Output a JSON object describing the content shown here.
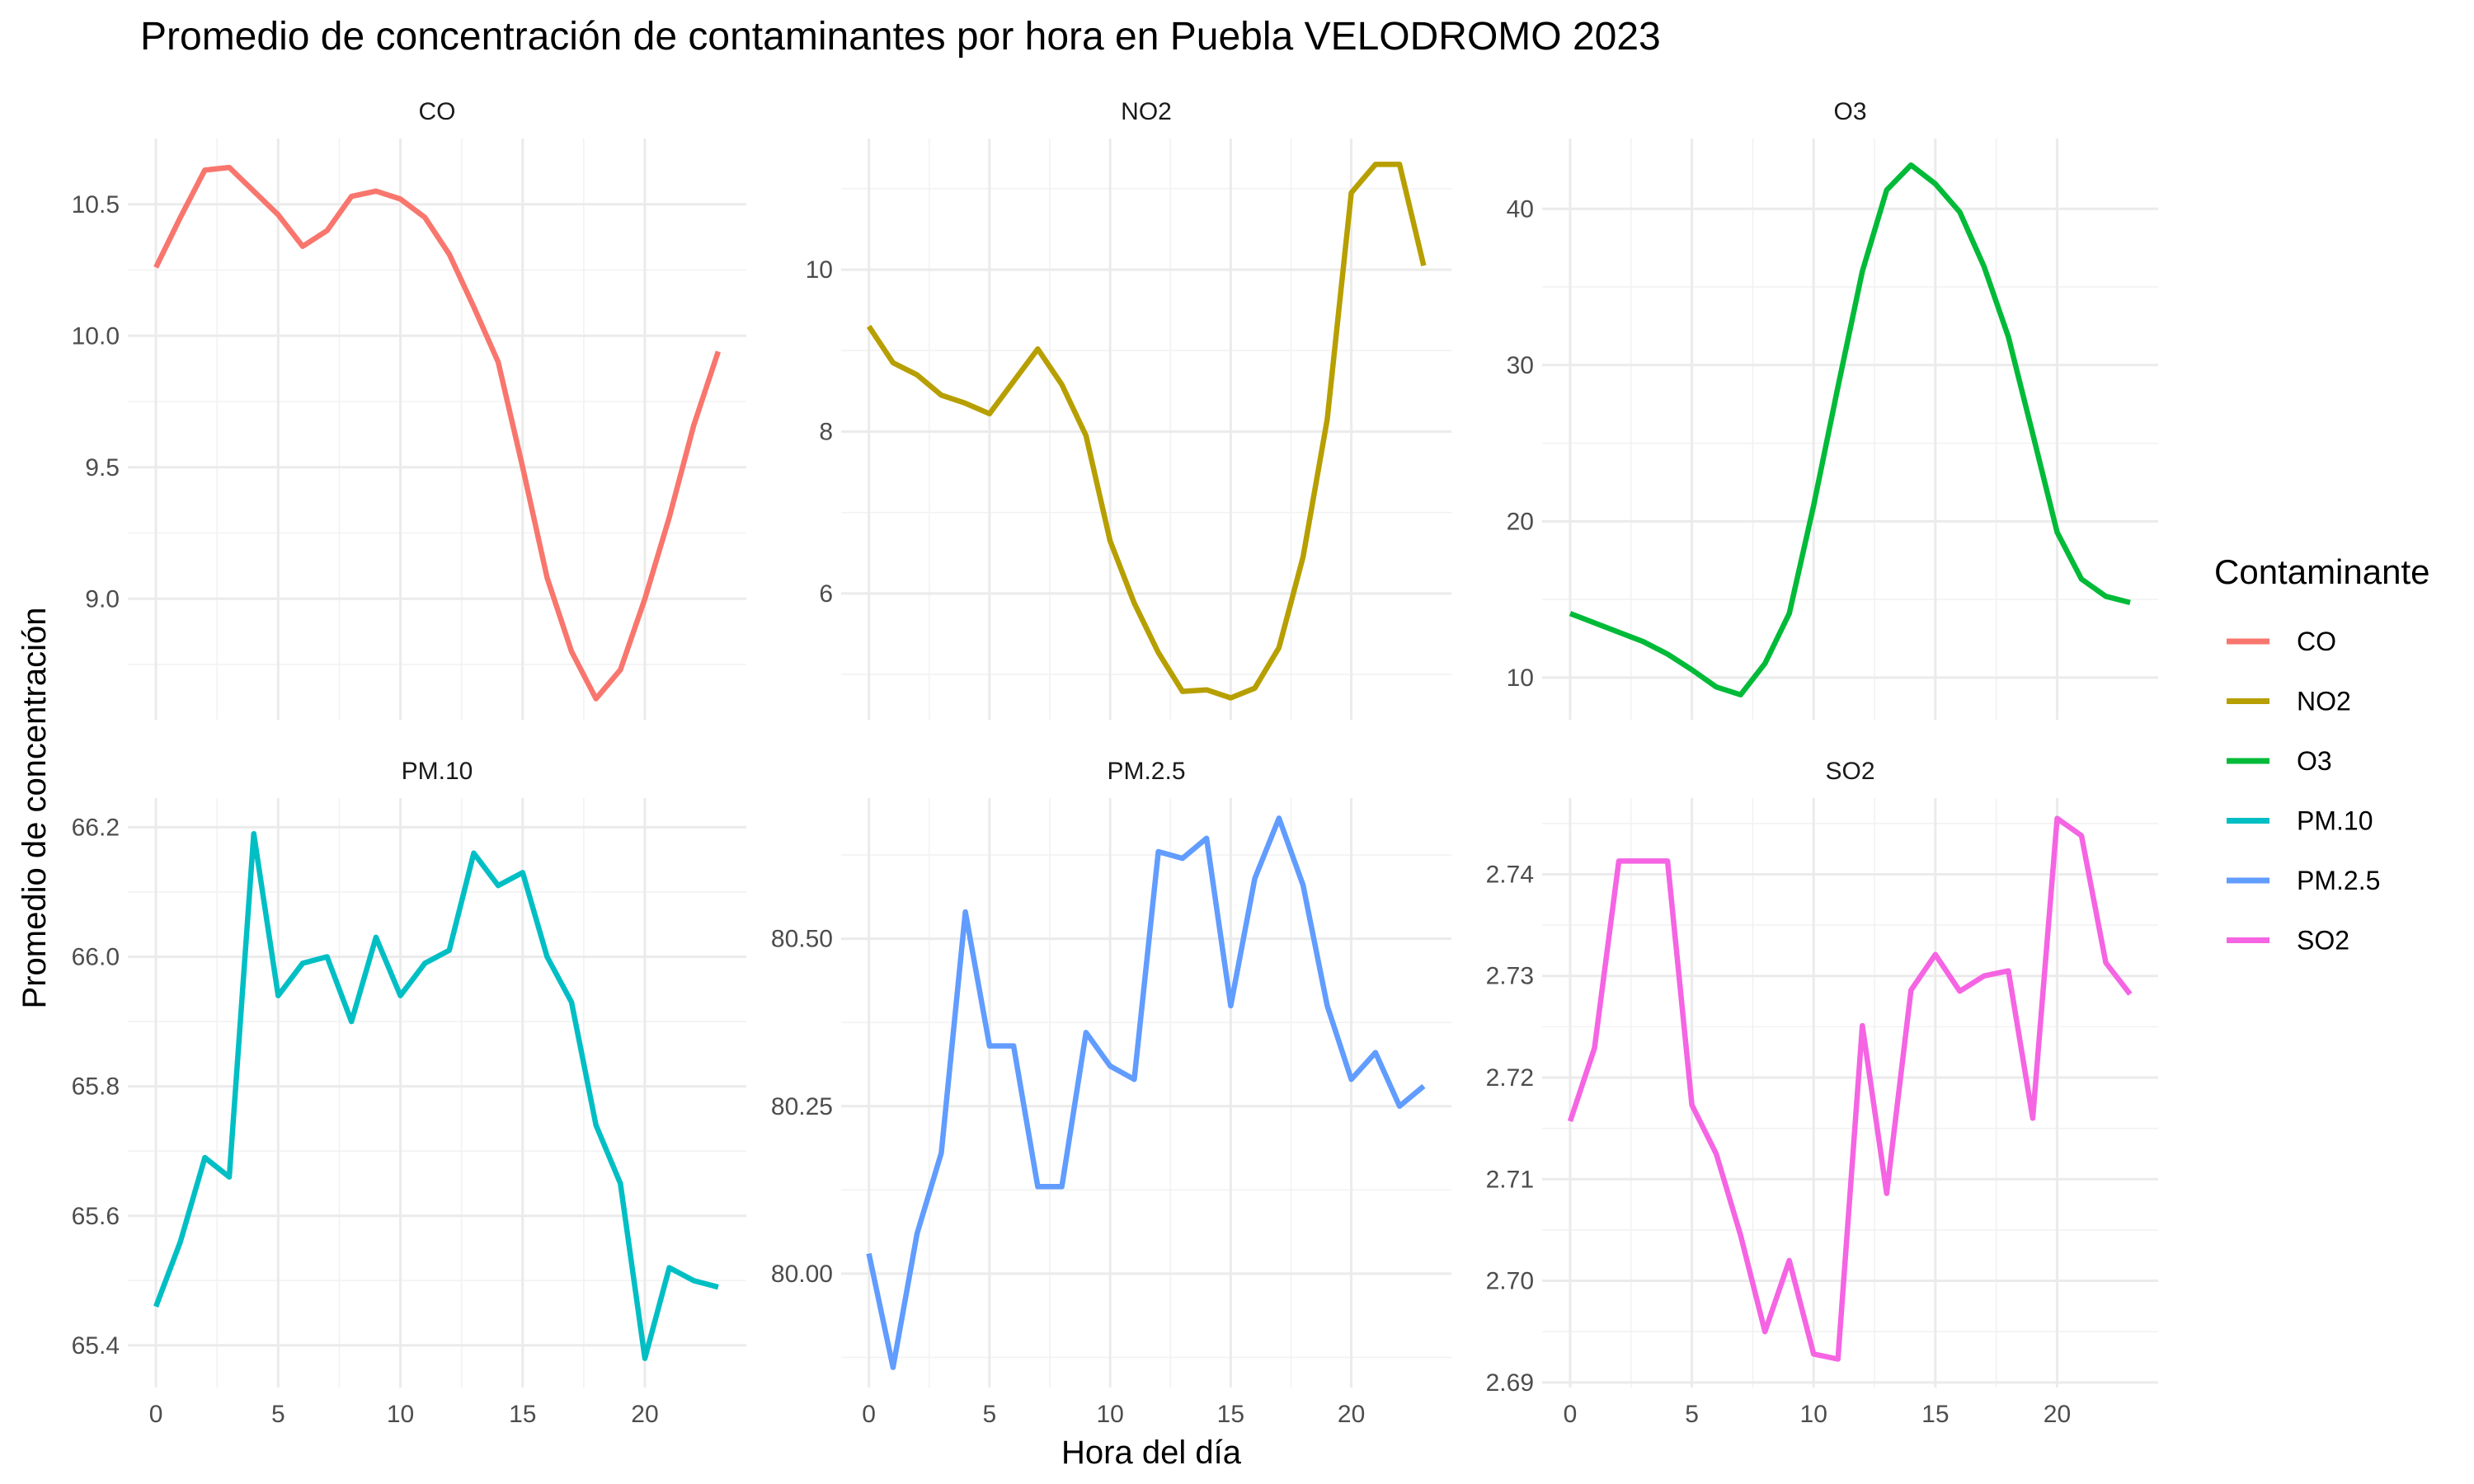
{
  "chart_data": {
    "type": "line",
    "title": "Promedio de concentración de contaminantes por hora en Puebla VELODROMO 2023",
    "xlabel": "Hora del día",
    "ylabel": "Promedio de concentración",
    "legend": {
      "title": "Contaminante",
      "placement": "right"
    },
    "x": [
      0,
      1,
      2,
      3,
      4,
      5,
      6,
      7,
      8,
      9,
      10,
      11,
      12,
      13,
      14,
      15,
      16,
      17,
      18,
      19,
      20,
      21,
      22,
      23
    ],
    "x_ticks": [
      "0",
      "5",
      "10",
      "15",
      "20"
    ],
    "xlim": [
      -1.15,
      24.15
    ],
    "grid": true,
    "panels": [
      {
        "name": "CO",
        "color": "#F8766D",
        "ylim": [
          8.54,
          10.75
        ],
        "y_ticks": [
          9.0,
          9.5,
          10.0,
          10.5
        ],
        "y_tick_labels": [
          "9.0",
          "9.5",
          "10.0",
          "10.5"
        ],
        "values": [
          10.26,
          10.45,
          10.63,
          10.64,
          10.55,
          10.46,
          10.34,
          10.4,
          10.53,
          10.55,
          10.52,
          10.45,
          10.31,
          10.11,
          9.9,
          9.5,
          9.08,
          8.8,
          8.62,
          8.73,
          9.0,
          9.31,
          9.66,
          9.94
        ]
      },
      {
        "name": "NO2",
        "color": "#B79F00",
        "ylim": [
          4.44,
          11.62
        ],
        "y_ticks": [
          6,
          8,
          10
        ],
        "y_tick_labels": [
          "6",
          "8",
          "10"
        ],
        "values": [
          9.3,
          8.85,
          8.7,
          8.45,
          8.35,
          8.22,
          8.62,
          9.02,
          8.58,
          7.95,
          6.65,
          5.88,
          5.27,
          4.79,
          4.81,
          4.71,
          4.83,
          5.33,
          6.45,
          8.15,
          10.95,
          11.3,
          11.3,
          10.05
        ]
      },
      {
        "name": "O3",
        "color": "#00BA38",
        "ylim": [
          7.3,
          44.5
        ],
        "y_ticks": [
          10,
          20,
          30,
          40
        ],
        "y_tick_labels": [
          "10",
          "20",
          "30",
          "40"
        ],
        "values": [
          14.1,
          13.5,
          12.9,
          12.3,
          11.5,
          10.5,
          9.4,
          8.9,
          10.9,
          14.1,
          21.0,
          28.6,
          36.0,
          41.2,
          42.8,
          41.6,
          39.8,
          36.3,
          31.8,
          25.6,
          19.3,
          16.3,
          15.2,
          14.8
        ]
      },
      {
        "name": "PM.10",
        "color": "#00BFC4",
        "ylim": [
          65.335,
          66.245
        ],
        "y_ticks": [
          65.4,
          65.6,
          65.8,
          66.0,
          66.2
        ],
        "y_tick_labels": [
          "65.4",
          "65.6",
          "65.8",
          "66.0",
          "66.2"
        ],
        "values": [
          65.46,
          65.56,
          65.69,
          65.66,
          66.19,
          65.94,
          65.99,
          66.0,
          65.9,
          66.03,
          65.94,
          65.99,
          66.01,
          66.16,
          66.11,
          66.13,
          66.0,
          65.93,
          65.74,
          65.65,
          65.38,
          65.52,
          65.5,
          65.49
        ]
      },
      {
        "name": "PM.2.5",
        "color": "#619CFF",
        "ylim": [
          79.83,
          80.71
        ],
        "y_ticks": [
          80.0,
          80.25,
          80.5
        ],
        "y_tick_labels": [
          "80.00",
          "80.25",
          "80.50"
        ],
        "values": [
          80.03,
          79.86,
          80.06,
          80.18,
          80.54,
          80.34,
          80.34,
          80.13,
          80.13,
          80.36,
          80.31,
          80.29,
          80.63,
          80.62,
          80.65,
          80.4,
          80.59,
          80.68,
          80.58,
          80.4,
          80.29,
          80.33,
          80.25,
          80.28
        ]
      },
      {
        "name": "SO2",
        "color": "#F564E3",
        "ylim": [
          2.6895,
          2.7475
        ],
        "y_ticks": [
          2.69,
          2.7,
          2.71,
          2.72,
          2.73,
          2.74
        ],
        "y_tick_labels": [
          "2.69",
          "2.70",
          "2.71",
          "2.72",
          "2.73",
          "2.74"
        ],
        "values": [
          2.7157,
          2.7229,
          2.7413,
          2.7413,
          2.7413,
          2.7173,
          2.7125,
          2.7045,
          2.695,
          2.702,
          2.6928,
          2.6923,
          2.7251,
          2.7086,
          2.7286,
          2.7321,
          2.7285,
          2.73,
          2.7305,
          2.716,
          2.7455,
          2.7438,
          2.7313,
          2.7282
        ]
      }
    ]
  }
}
